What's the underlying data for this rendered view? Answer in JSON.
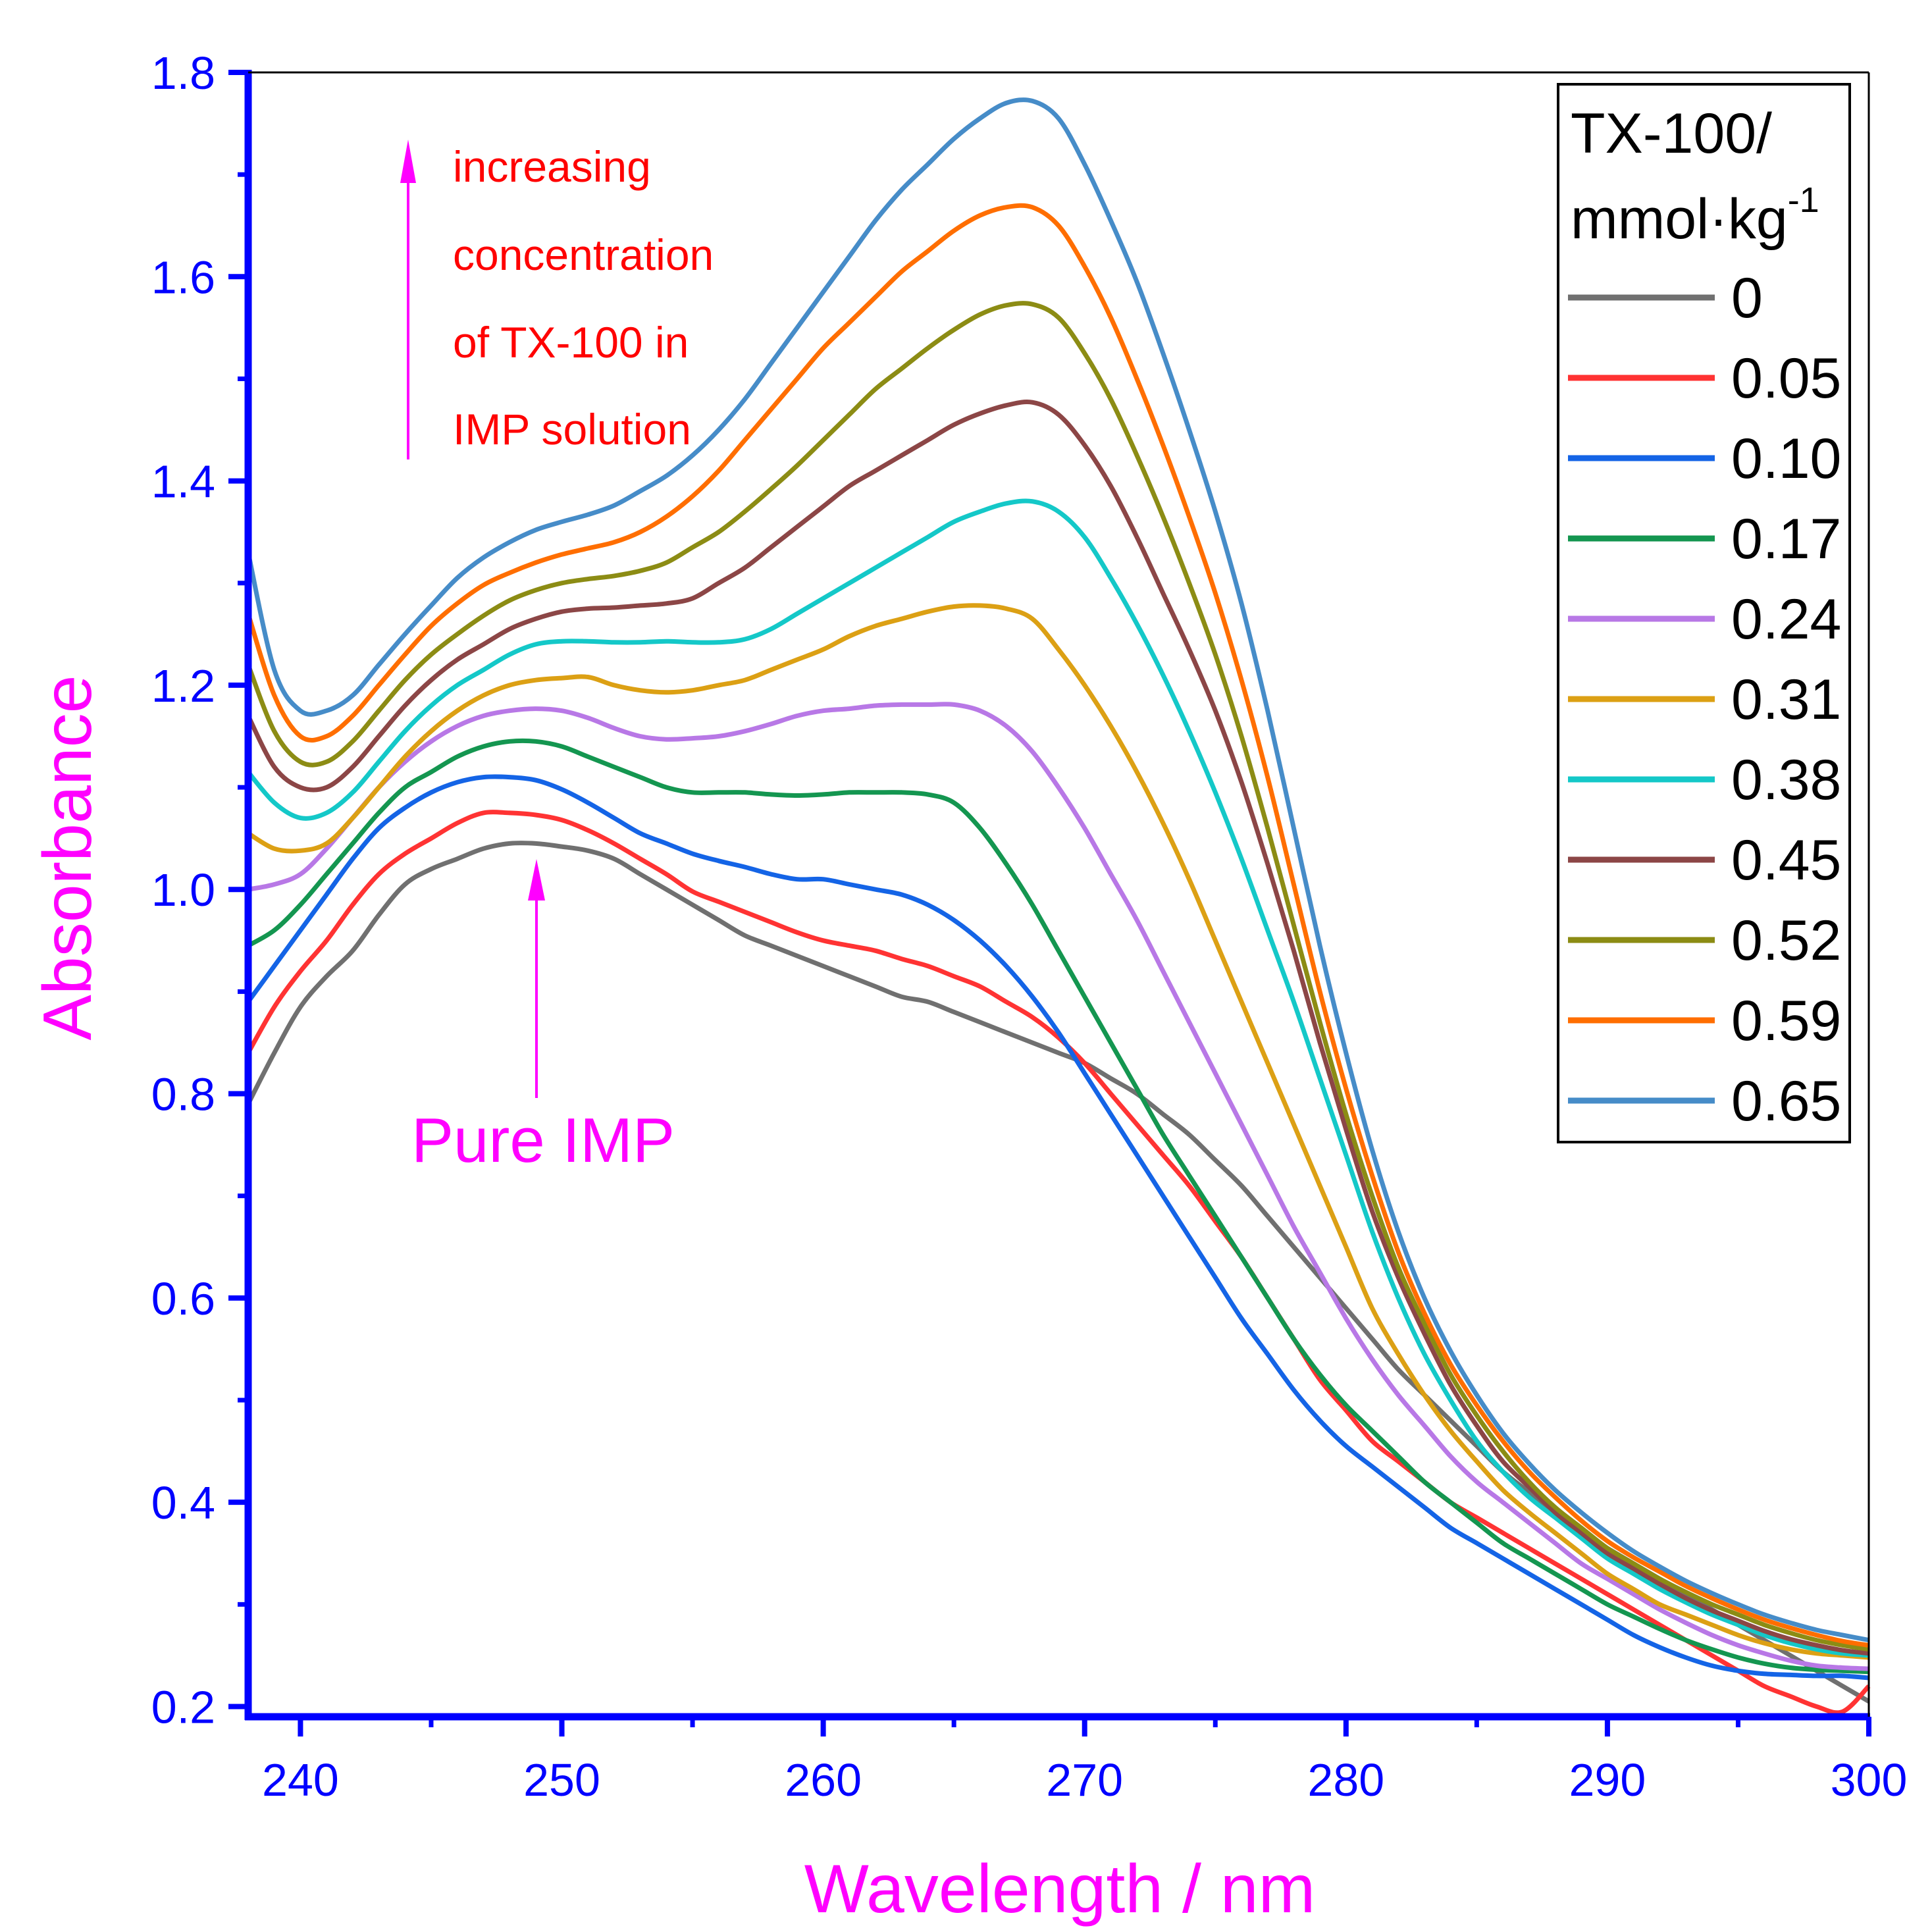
{
  "chart_data": {
    "type": "line",
    "title": "",
    "xlabel": "Wavelength / nm",
    "ylabel": "Absorbance",
    "xlim": [
      238,
      300
    ],
    "ylim": [
      0.19,
      1.8
    ],
    "xticks": [
      "240",
      "250",
      "260",
      "270",
      "280",
      "290",
      "300"
    ],
    "yticks": [
      "0.2",
      "0.4",
      "0.6",
      "0.8",
      "1.0",
      "1.2",
      "1.4",
      "1.6",
      "1.8"
    ],
    "grid": false,
    "legend_position": "top-right",
    "legend_title_line1": "TX-100/",
    "legend_title_line2": "mmol·kg",
    "legend_title_sup": "-1",
    "x": [
      238,
      239,
      240,
      241,
      242,
      243,
      244,
      245,
      246,
      247,
      248,
      249,
      250,
      251,
      252,
      253,
      254,
      255,
      256,
      257,
      258,
      259,
      260,
      261,
      262,
      263,
      264,
      265,
      266,
      267,
      268,
      269,
      270,
      271,
      272,
      273,
      274,
      275,
      276,
      277,
      278,
      279,
      280,
      281,
      282,
      283,
      284,
      285,
      286,
      287,
      288,
      289,
      290,
      291,
      292,
      293,
      294,
      295,
      296,
      297,
      298,
      299,
      300
    ],
    "series": [
      {
        "name": "0",
        "color": "#707070",
        "values": [
          0.79,
          0.84,
          0.885,
          0.915,
          0.94,
          0.975,
          1.005,
          1.02,
          1.03,
          1.04,
          1.045,
          1.045,
          1.042,
          1.038,
          1.03,
          1.015,
          1.0,
          0.985,
          0.97,
          0.955,
          0.945,
          0.935,
          0.925,
          0.915,
          0.905,
          0.895,
          0.89,
          0.88,
          0.87,
          0.86,
          0.85,
          0.84,
          0.83,
          0.815,
          0.8,
          0.78,
          0.76,
          0.735,
          0.71,
          0.68,
          0.65,
          0.62,
          0.59,
          0.56,
          0.53,
          0.505,
          0.48,
          0.455,
          0.43,
          0.41,
          0.39,
          0.37,
          0.355,
          0.34,
          0.325,
          0.31,
          0.295,
          0.28,
          0.265,
          0.25,
          0.235,
          0.22,
          0.205
        ]
      },
      {
        "name": "0.05",
        "color": "#ff3333",
        "values": [
          0.84,
          0.885,
          0.92,
          0.95,
          0.985,
          1.015,
          1.035,
          1.05,
          1.065,
          1.075,
          1.075,
          1.073,
          1.068,
          1.058,
          1.045,
          1.03,
          1.015,
          0.998,
          0.988,
          0.978,
          0.968,
          0.958,
          0.95,
          0.945,
          0.94,
          0.932,
          0.925,
          0.915,
          0.905,
          0.89,
          0.875,
          0.855,
          0.83,
          0.8,
          0.77,
          0.74,
          0.71,
          0.675,
          0.64,
          0.6,
          0.56,
          0.52,
          0.49,
          0.46,
          0.44,
          0.42,
          0.4,
          0.385,
          0.37,
          0.355,
          0.34,
          0.325,
          0.31,
          0.295,
          0.28,
          0.265,
          0.25,
          0.235,
          0.22,
          0.21,
          0.2,
          0.195,
          0.22
        ]
      },
      {
        "name": "0.10",
        "color": "#1464e6",
        "values": [
          0.89,
          0.925,
          0.96,
          0.995,
          1.03,
          1.06,
          1.08,
          1.095,
          1.105,
          1.11,
          1.11,
          1.107,
          1.098,
          1.085,
          1.07,
          1.055,
          1.045,
          1.035,
          1.028,
          1.022,
          1.015,
          1.01,
          1.01,
          1.005,
          1.0,
          0.995,
          0.985,
          0.97,
          0.95,
          0.925,
          0.895,
          0.86,
          0.82,
          0.78,
          0.74,
          0.7,
          0.66,
          0.62,
          0.58,
          0.545,
          0.51,
          0.48,
          0.455,
          0.435,
          0.415,
          0.395,
          0.375,
          0.36,
          0.345,
          0.33,
          0.315,
          0.3,
          0.285,
          0.27,
          0.258,
          0.248,
          0.24,
          0.235,
          0.232,
          0.231,
          0.23,
          0.23,
          0.228
        ]
      },
      {
        "name": "0.17",
        "color": "#149650",
        "values": [
          0.945,
          0.96,
          0.985,
          1.015,
          1.045,
          1.075,
          1.1,
          1.115,
          1.13,
          1.14,
          1.145,
          1.145,
          1.14,
          1.13,
          1.12,
          1.11,
          1.1,
          1.095,
          1.095,
          1.095,
          1.093,
          1.092,
          1.093,
          1.095,
          1.095,
          1.095,
          1.093,
          1.085,
          1.06,
          1.025,
          0.985,
          0.94,
          0.895,
          0.85,
          0.805,
          0.76,
          0.72,
          0.68,
          0.64,
          0.6,
          0.56,
          0.525,
          0.495,
          0.47,
          0.445,
          0.42,
          0.4,
          0.38,
          0.36,
          0.345,
          0.33,
          0.315,
          0.3,
          0.288,
          0.276,
          0.265,
          0.256,
          0.248,
          0.242,
          0.238,
          0.236,
          0.235,
          0.234
        ]
      },
      {
        "name": "0.24",
        "color": "#b878e6",
        "values": [
          1.0,
          1.005,
          1.015,
          1.04,
          1.07,
          1.1,
          1.125,
          1.145,
          1.16,
          1.17,
          1.175,
          1.177,
          1.175,
          1.168,
          1.158,
          1.15,
          1.147,
          1.148,
          1.15,
          1.155,
          1.162,
          1.17,
          1.175,
          1.177,
          1.18,
          1.181,
          1.181,
          1.181,
          1.175,
          1.16,
          1.135,
          1.1,
          1.06,
          1.015,
          0.97,
          0.92,
          0.87,
          0.82,
          0.77,
          0.72,
          0.67,
          0.625,
          0.58,
          0.54,
          0.505,
          0.475,
          0.445,
          0.42,
          0.4,
          0.38,
          0.36,
          0.34,
          0.325,
          0.31,
          0.295,
          0.282,
          0.27,
          0.26,
          0.252,
          0.245,
          0.24,
          0.238,
          0.237
        ]
      },
      {
        "name": "0.31",
        "color": "#dca014",
        "values": [
          1.055,
          1.04,
          1.038,
          1.045,
          1.07,
          1.1,
          1.13,
          1.155,
          1.175,
          1.19,
          1.2,
          1.205,
          1.207,
          1.208,
          1.2,
          1.195,
          1.193,
          1.195,
          1.2,
          1.205,
          1.215,
          1.225,
          1.235,
          1.248,
          1.258,
          1.265,
          1.272,
          1.277,
          1.278,
          1.275,
          1.265,
          1.235,
          1.2,
          1.16,
          1.115,
          1.065,
          1.01,
          0.95,
          0.89,
          0.83,
          0.77,
          0.71,
          0.65,
          0.59,
          0.545,
          0.505,
          0.47,
          0.44,
          0.412,
          0.39,
          0.37,
          0.35,
          0.33,
          0.315,
          0.3,
          0.29,
          0.28,
          0.27,
          0.262,
          0.256,
          0.252,
          0.25,
          0.248
        ]
      },
      {
        "name": "0.38",
        "color": "#14c8c8",
        "values": [
          1.115,
          1.085,
          1.07,
          1.075,
          1.095,
          1.125,
          1.155,
          1.18,
          1.2,
          1.215,
          1.23,
          1.24,
          1.243,
          1.243,
          1.242,
          1.242,
          1.243,
          1.242,
          1.242,
          1.245,
          1.255,
          1.27,
          1.285,
          1.3,
          1.315,
          1.33,
          1.345,
          1.36,
          1.37,
          1.378,
          1.38,
          1.37,
          1.345,
          1.305,
          1.26,
          1.21,
          1.155,
          1.095,
          1.03,
          0.96,
          0.89,
          0.815,
          0.74,
          0.665,
          0.6,
          0.545,
          0.5,
          0.46,
          0.43,
          0.405,
          0.385,
          0.365,
          0.345,
          0.33,
          0.315,
          0.302,
          0.29,
          0.28,
          0.27,
          0.262,
          0.256,
          0.252,
          0.25
        ]
      },
      {
        "name": "0.45",
        "color": "#8c4646",
        "values": [
          1.17,
          1.12,
          1.1,
          1.1,
          1.12,
          1.15,
          1.18,
          1.205,
          1.225,
          1.24,
          1.255,
          1.265,
          1.272,
          1.275,
          1.276,
          1.278,
          1.28,
          1.285,
          1.3,
          1.315,
          1.335,
          1.355,
          1.375,
          1.395,
          1.41,
          1.425,
          1.44,
          1.455,
          1.466,
          1.474,
          1.477,
          1.465,
          1.435,
          1.395,
          1.345,
          1.29,
          1.235,
          1.175,
          1.105,
          1.025,
          0.94,
          0.85,
          0.765,
          0.685,
          0.62,
          0.565,
          0.515,
          0.475,
          0.44,
          0.415,
          0.39,
          0.37,
          0.35,
          0.335,
          0.32,
          0.306,
          0.294,
          0.284,
          0.274,
          0.266,
          0.26,
          0.255,
          0.252
        ]
      },
      {
        "name": "0.52",
        "color": "#8c8c14",
        "values": [
          1.22,
          1.155,
          1.125,
          1.125,
          1.145,
          1.175,
          1.205,
          1.23,
          1.25,
          1.268,
          1.283,
          1.293,
          1.3,
          1.304,
          1.307,
          1.312,
          1.32,
          1.335,
          1.35,
          1.37,
          1.392,
          1.415,
          1.44,
          1.465,
          1.49,
          1.51,
          1.53,
          1.548,
          1.563,
          1.572,
          1.573,
          1.56,
          1.525,
          1.48,
          1.425,
          1.365,
          1.3,
          1.23,
          1.15,
          1.06,
          0.965,
          0.87,
          0.78,
          0.7,
          0.63,
          0.575,
          0.525,
          0.485,
          0.45,
          0.42,
          0.395,
          0.375,
          0.355,
          0.34,
          0.325,
          0.312,
          0.3,
          0.29,
          0.28,
          0.272,
          0.265,
          0.26,
          0.256
        ]
      },
      {
        "name": "0.59",
        "color": "#ff6e00",
        "values": [
          1.27,
          1.19,
          1.15,
          1.15,
          1.17,
          1.2,
          1.23,
          1.258,
          1.28,
          1.298,
          1.31,
          1.32,
          1.328,
          1.334,
          1.34,
          1.35,
          1.365,
          1.385,
          1.41,
          1.44,
          1.47,
          1.5,
          1.53,
          1.555,
          1.58,
          1.605,
          1.625,
          1.645,
          1.66,
          1.668,
          1.668,
          1.65,
          1.61,
          1.56,
          1.5,
          1.435,
          1.365,
          1.29,
          1.205,
          1.11,
          1.005,
          0.9,
          0.805,
          0.72,
          0.645,
          0.585,
          0.535,
          0.495,
          0.46,
          0.43,
          0.405,
          0.382,
          0.362,
          0.346,
          0.332,
          0.318,
          0.306,
          0.295,
          0.285,
          0.277,
          0.27,
          0.264,
          0.26
        ]
      },
      {
        "name": "0.65",
        "color": "#468cc8",
        "values": [
          1.33,
          1.215,
          1.175,
          1.175,
          1.19,
          1.22,
          1.25,
          1.278,
          1.305,
          1.325,
          1.34,
          1.352,
          1.36,
          1.367,
          1.376,
          1.39,
          1.405,
          1.425,
          1.45,
          1.48,
          1.515,
          1.55,
          1.585,
          1.62,
          1.655,
          1.685,
          1.71,
          1.735,
          1.755,
          1.77,
          1.772,
          1.755,
          1.71,
          1.655,
          1.595,
          1.525,
          1.45,
          1.37,
          1.28,
          1.175,
          1.06,
          0.945,
          0.84,
          0.745,
          0.665,
          0.6,
          0.548,
          0.505,
          0.468,
          0.438,
          0.412,
          0.39,
          0.37,
          0.352,
          0.337,
          0.323,
          0.311,
          0.3,
          0.29,
          0.282,
          0.275,
          0.27,
          0.265
        ]
      }
    ],
    "annotations": {
      "increasing_lines": [
        "increasing",
        "concentration",
        "of TX-100 in",
        "IMP solution"
      ],
      "pure_label": "Pure IMP"
    }
  },
  "colors": {
    "axis": "#0000ff",
    "label": "#ff00ff",
    "annotation_text": "#ff0000",
    "arrow": "#ff00ff"
  }
}
